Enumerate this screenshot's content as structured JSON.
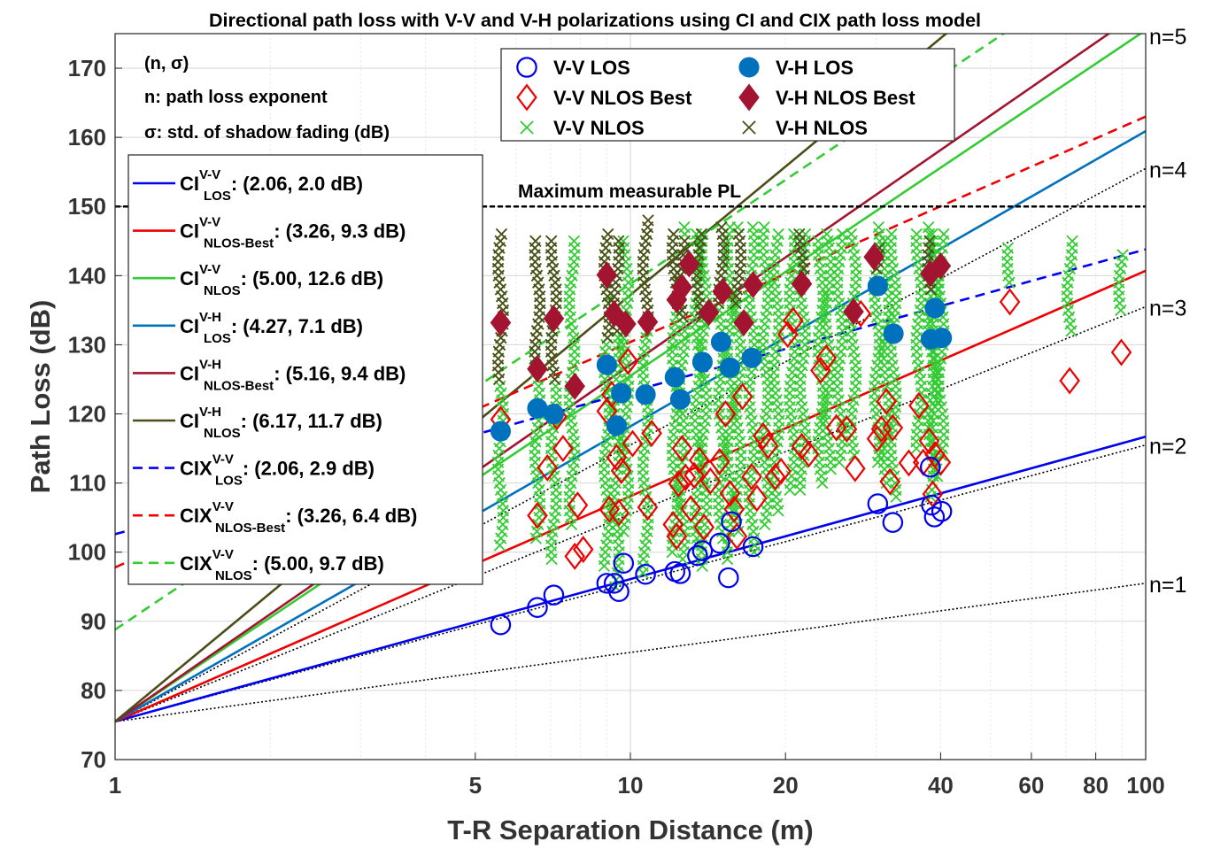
{
  "chart_data": {
    "type": "scatter",
    "title": "Directional path loss with V-V and V-H polarizations using CI and CIX path loss model",
    "xlabel": "T-R Separation Distance (m)",
    "ylabel": "Path Loss (dB)",
    "xscale": "log",
    "xlim": [
      1,
      100
    ],
    "ylim": [
      70,
      175
    ],
    "xticks": [
      1,
      5,
      10,
      20,
      40,
      60,
      80,
      100
    ],
    "xtick_labels": [
      "1",
      "5",
      "10",
      "20",
      "40",
      "60",
      "80",
      "100"
    ],
    "yticks": [
      70,
      80,
      90,
      100,
      110,
      120,
      130,
      140,
      150,
      160,
      170
    ],
    "ytick_labels": [
      "70",
      "80",
      "90",
      "100",
      "110",
      "120",
      "130",
      "140",
      "150",
      "160",
      "170"
    ],
    "grid": true,
    "fspl_1m": 75.5,
    "max_measurable": {
      "label": "Maximum measurable PL",
      "value": 150
    },
    "reference_lines": [
      {
        "n": 1,
        "label": "n=1"
      },
      {
        "n": 2,
        "label": "n=2"
      },
      {
        "n": 3,
        "label": "n=3"
      },
      {
        "n": 4,
        "label": "n=4"
      },
      {
        "n": 5,
        "label": "n=5"
      }
    ],
    "model_lines": [
      {
        "name": "CI",
        "sup": "V-V",
        "sub": "LOS",
        "params": ": (2.06, 2.0 dB)",
        "n": 2.06,
        "intercept": 75.5,
        "color": "#0000ee",
        "dash": "solid"
      },
      {
        "name": "CI",
        "sup": "V-V",
        "sub": "NLOS-Best",
        "params": ": (3.26, 9.3 dB)",
        "n": 3.26,
        "intercept": 75.5,
        "color": "#ee0000",
        "dash": "solid"
      },
      {
        "name": "CI",
        "sup": "V-V",
        "sub": "NLOS",
        "params": ": (5.00, 12.6 dB)",
        "n": 5.0,
        "intercept": 75.5,
        "color": "#33cc33",
        "dash": "solid"
      },
      {
        "name": "CI",
        "sup": "V-H",
        "sub": "LOS",
        "params": ": (4.27, 7.1 dB)",
        "n": 4.27,
        "intercept": 75.5,
        "color": "#0072bd",
        "dash": "solid"
      },
      {
        "name": "CI",
        "sup": "V-H",
        "sub": "NLOS-Best",
        "params": ": (5.16, 9.4 dB)",
        "n": 5.16,
        "intercept": 75.5,
        "color": "#a2142f",
        "dash": "solid"
      },
      {
        "name": "CI",
        "sup": "V-H",
        "sub": "NLOS",
        "params": ": (6.17, 11.7 dB)",
        "n": 6.17,
        "intercept": 75.5,
        "color": "#4d4d1a",
        "dash": "solid"
      },
      {
        "name": "CIX",
        "sup": "V-V",
        "sub": "LOS",
        "params": ": (2.06, 2.9 dB)",
        "n": 2.06,
        "intercept": 102.6,
        "color": "#0000ee",
        "dash": "dashed"
      },
      {
        "name": "CIX",
        "sup": "V-V",
        "sub": "NLOS-Best",
        "params": ": (3.26, 6.4 dB)",
        "n": 3.26,
        "intercept": 97.8,
        "color": "#ee0000",
        "dash": "dashed"
      },
      {
        "name": "CIX",
        "sup": "V-V",
        "sub": "NLOS",
        "params": ": (5.00, 9.7 dB)",
        "n": 5.0,
        "intercept": 88.8,
        "color": "#33cc33",
        "dash": "dashed"
      }
    ],
    "info_box": [
      "(n, σ)",
      "n: path loss exponent",
      "σ: std. of shadow fading (dB)"
    ],
    "marker_legend": [
      {
        "label": "V-V LOS",
        "marker": "open-circle",
        "color": "#0000ee"
      },
      {
        "label": "V-H LOS",
        "marker": "filled-circle",
        "color": "#0072bd"
      },
      {
        "label": "V-V NLOS Best",
        "marker": "open-diamond",
        "color": "#ee0000"
      },
      {
        "label": "V-H NLOS Best",
        "marker": "filled-diamond",
        "color": "#a2142f"
      },
      {
        "label": "V-V NLOS",
        "marker": "x",
        "color": "#33cc33"
      },
      {
        "label": "V-H NLOS",
        "marker": "x",
        "color": "#4d4d1a"
      }
    ],
    "series": [
      {
        "name": "V-V LOS",
        "marker": "open-circle",
        "color": "#0000ee",
        "points": [
          [
            5.6,
            89.5
          ],
          [
            6.6,
            92
          ],
          [
            7.1,
            93.8
          ],
          [
            9.0,
            95.5
          ],
          [
            9.3,
            95.5
          ],
          [
            9.5,
            94.3
          ],
          [
            9.7,
            98.4
          ],
          [
            10.7,
            96.8
          ],
          [
            12.2,
            97.2
          ],
          [
            12.5,
            96.9
          ],
          [
            13.5,
            99.5
          ],
          [
            13.8,
            100.2
          ],
          [
            14.9,
            101.3
          ],
          [
            15.5,
            96.3
          ],
          [
            15.7,
            104.4
          ],
          [
            17.3,
            100.8
          ],
          [
            30.2,
            107
          ],
          [
            32.3,
            104.3
          ],
          [
            38.2,
            112.3
          ],
          [
            38.4,
            106.8
          ],
          [
            38.9,
            105.1
          ],
          [
            40.2,
            105.9
          ]
        ]
      },
      {
        "name": "V-H LOS",
        "marker": "filled-circle",
        "color": "#0072bd",
        "points": [
          [
            5.6,
            117.5
          ],
          [
            6.6,
            120.8
          ],
          [
            7.1,
            120
          ],
          [
            9.0,
            127.1
          ],
          [
            9.4,
            118.3
          ],
          [
            9.6,
            123
          ],
          [
            10.7,
            122.8
          ],
          [
            12.2,
            125.3
          ],
          [
            12.5,
            122.1
          ],
          [
            13.8,
            127.5
          ],
          [
            15.0,
            130.4
          ],
          [
            15.6,
            126.7
          ],
          [
            17.2,
            128.1
          ],
          [
            30.2,
            138.5
          ],
          [
            32.4,
            131.6
          ],
          [
            38.3,
            130.8
          ],
          [
            39.0,
            135.3
          ],
          [
            40.2,
            131
          ]
        ]
      },
      {
        "name": "V-V NLOS Best",
        "marker": "open-diamond",
        "color": "#ee0000",
        "points": [
          [
            5.6,
            119.2
          ],
          [
            6.6,
            105.3
          ],
          [
            6.9,
            112.2
          ],
          [
            7.2,
            119.6
          ],
          [
            7.4,
            115
          ],
          [
            7.8,
            99.4
          ],
          [
            7.9,
            106.8
          ],
          [
            8.1,
            100.4
          ],
          [
            9.0,
            120.4
          ],
          [
            9.1,
            106.2
          ],
          [
            9.2,
            122.8
          ],
          [
            9.4,
            113.7
          ],
          [
            9.5,
            105.7
          ],
          [
            9.6,
            111.8
          ],
          [
            9.9,
            127.6
          ],
          [
            10.1,
            115.7
          ],
          [
            10.8,
            106.5
          ],
          [
            11.0,
            117.2
          ],
          [
            12.1,
            104
          ],
          [
            12.3,
            102.3
          ],
          [
            12.4,
            109.9
          ],
          [
            12.6,
            115
          ],
          [
            12.8,
            110.8
          ],
          [
            13.1,
            106.3
          ],
          [
            13.3,
            111.1
          ],
          [
            13.6,
            113.3
          ],
          [
            13.9,
            103.6
          ],
          [
            14.3,
            110.3
          ],
          [
            14.9,
            113.1
          ],
          [
            15.3,
            120
          ],
          [
            15.6,
            108.5
          ],
          [
            15.9,
            106.2
          ],
          [
            16.1,
            102.3
          ],
          [
            16.5,
            122.5
          ],
          [
            17.2,
            110.9
          ],
          [
            17.6,
            107.8
          ],
          [
            18.1,
            116.8
          ],
          [
            18.5,
            115.4
          ],
          [
            19.1,
            110.9
          ],
          [
            19.6,
            111.7
          ],
          [
            20.2,
            131.5
          ],
          [
            20.7,
            133.5
          ],
          [
            21.5,
            115.3
          ],
          [
            22.2,
            114.2
          ],
          [
            23.4,
            126.3
          ],
          [
            24.0,
            128.1
          ],
          [
            25.1,
            118
          ],
          [
            26.3,
            117.8
          ],
          [
            27.3,
            112.1
          ],
          [
            28.0,
            134.5
          ],
          [
            30.1,
            116.4
          ],
          [
            30.7,
            117.8
          ],
          [
            31.4,
            121.8
          ],
          [
            31.9,
            110.2
          ],
          [
            32.3,
            118
          ],
          [
            34.7,
            112.9
          ],
          [
            36.3,
            121.2
          ],
          [
            37.0,
            113
          ],
          [
            38.0,
            116.1
          ],
          [
            38.6,
            108.4
          ],
          [
            39.0,
            114.1
          ],
          [
            40.0,
            113
          ],
          [
            54.5,
            136.2
          ],
          [
            71.2,
            124.8
          ],
          [
            89.7,
            128.9
          ]
        ]
      },
      {
        "name": "V-H NLOS Best",
        "marker": "filled-diamond",
        "color": "#a2142f",
        "points": [
          [
            5.6,
            133.2
          ],
          [
            6.6,
            126.5
          ],
          [
            7.1,
            133.8
          ],
          [
            7.8,
            124
          ],
          [
            9.0,
            140.1
          ],
          [
            9.3,
            134.5
          ],
          [
            9.8,
            133
          ],
          [
            10.8,
            133.3
          ],
          [
            12.3,
            136.5
          ],
          [
            12.6,
            138.3
          ],
          [
            13.0,
            141.7
          ],
          [
            14.2,
            134.7
          ],
          [
            15.1,
            137.7
          ],
          [
            16.6,
            133.2
          ],
          [
            17.3,
            138.7
          ],
          [
            21.5,
            138.8
          ],
          [
            27.1,
            134.8
          ],
          [
            29.7,
            142.7
          ],
          [
            38.2,
            140.3
          ],
          [
            40.0,
            141.4
          ]
        ]
      },
      {
        "name": "V-V NLOS",
        "marker": "x",
        "color": "#33cc33",
        "columns": [
          [
            5.6,
            101,
            145
          ],
          [
            6.6,
            102,
            145
          ],
          [
            7.1,
            99,
            145
          ],
          [
            7.7,
            104,
            145
          ],
          [
            9.0,
            98,
            145
          ],
          [
            9.4,
            95,
            145
          ],
          [
            9.8,
            103,
            145
          ],
          [
            10.7,
            97,
            146
          ],
          [
            12.2,
            100,
            146
          ],
          [
            12.6,
            99,
            147
          ],
          [
            13.5,
            101,
            146
          ],
          [
            13.9,
            98,
            146
          ],
          [
            15.0,
            102,
            147
          ],
          [
            15.6,
            99,
            147
          ],
          [
            16.2,
            103,
            147
          ],
          [
            17.2,
            100,
            147
          ],
          [
            18.3,
            104,
            147
          ],
          [
            19.2,
            106,
            146
          ],
          [
            20.6,
            109,
            146
          ],
          [
            21.6,
            109,
            146
          ],
          [
            23.4,
            110,
            145
          ],
          [
            24.2,
            112,
            146
          ],
          [
            25.5,
            113,
            146
          ],
          [
            27.1,
            114,
            146
          ],
          [
            30.1,
            113,
            147
          ],
          [
            31.4,
            110,
            145
          ],
          [
            32.4,
            108,
            146
          ],
          [
            36.3,
            115,
            146
          ],
          [
            38.3,
            108,
            147
          ],
          [
            39.0,
            111,
            146
          ],
          [
            40.1,
            114,
            146
          ],
          [
            54.5,
            139,
            144
          ],
          [
            71.2,
            132,
            145
          ],
          [
            89.7,
            135,
            143
          ]
        ]
      },
      {
        "name": "V-H NLOS",
        "marker": "x",
        "color": "#4d4d1a",
        "columns": [
          [
            5.6,
            125,
            146
          ],
          [
            6.6,
            128,
            145
          ],
          [
            7.1,
            125,
            145
          ],
          [
            9.0,
            131,
            146
          ],
          [
            9.4,
            132,
            145
          ],
          [
            10.7,
            133,
            148
          ],
          [
            12.2,
            136,
            146
          ],
          [
            12.6,
            134,
            145
          ],
          [
            13.6,
            134,
            146
          ],
          [
            15.0,
            136,
            147
          ],
          [
            16.2,
            136,
            146
          ],
          [
            21.5,
            140,
            146
          ],
          [
            30.1,
            141,
            144
          ],
          [
            38.2,
            138,
            145
          ]
        ]
      }
    ]
  }
}
